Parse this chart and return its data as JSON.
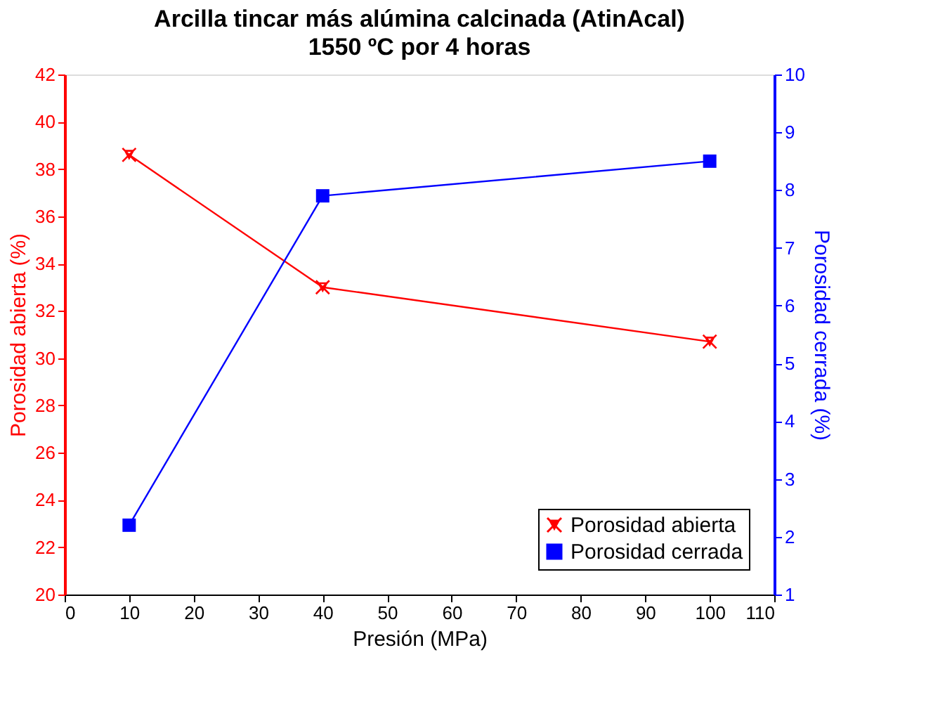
{
  "chart_data": {
    "type": "line",
    "title": "Arcilla tincar más alúmina calcinada (AtinAcal)",
    "subtitle": "1550 ºC por 4 horas",
    "xlabel": "Presión (MPa)",
    "ylabel": "Porosidad abierta (%)",
    "y2label": "Porosidad cerrada (%)",
    "x": [
      10,
      40,
      100
    ],
    "series": [
      {
        "name": "Porosidad abierta",
        "color": "#ff0000",
        "values": [
          38.6,
          33.0,
          30.7
        ],
        "marker": "cross"
      },
      {
        "name": "Porosidad cerrada",
        "color": "#0000ff",
        "values": [
          2.2,
          7.9,
          8.5
        ],
        "marker": "square",
        "axis": "y2"
      }
    ],
    "xlim": [
      0,
      110
    ],
    "xticks": [
      0,
      10,
      20,
      30,
      40,
      50,
      60,
      70,
      80,
      90,
      100,
      110
    ],
    "ylim": [
      20,
      42
    ],
    "yticks": [
      20,
      22,
      24,
      26,
      28,
      30,
      32,
      34,
      36,
      38,
      40,
      42
    ],
    "y2lim": [
      1,
      10
    ],
    "y2ticks": [
      1,
      2,
      3,
      4,
      5,
      6,
      7,
      8,
      9,
      10
    ],
    "grid": false,
    "legend": "bottom right",
    "line_style": "solid"
  }
}
